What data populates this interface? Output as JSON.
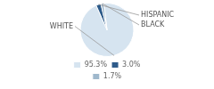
{
  "chart_data": {
    "type": "pie",
    "categories": [
      "95.3%",
      "3.0%",
      "1.7%"
    ],
    "values": [
      95.3,
      3.0,
      1.7
    ],
    "colors": [
      "#d6e4f0",
      "#2e5b8a",
      "#9fb8cc"
    ],
    "annotations": [
      "WHITE",
      "HISPANIC",
      "BLACK"
    ],
    "legend": "bottom"
  }
}
